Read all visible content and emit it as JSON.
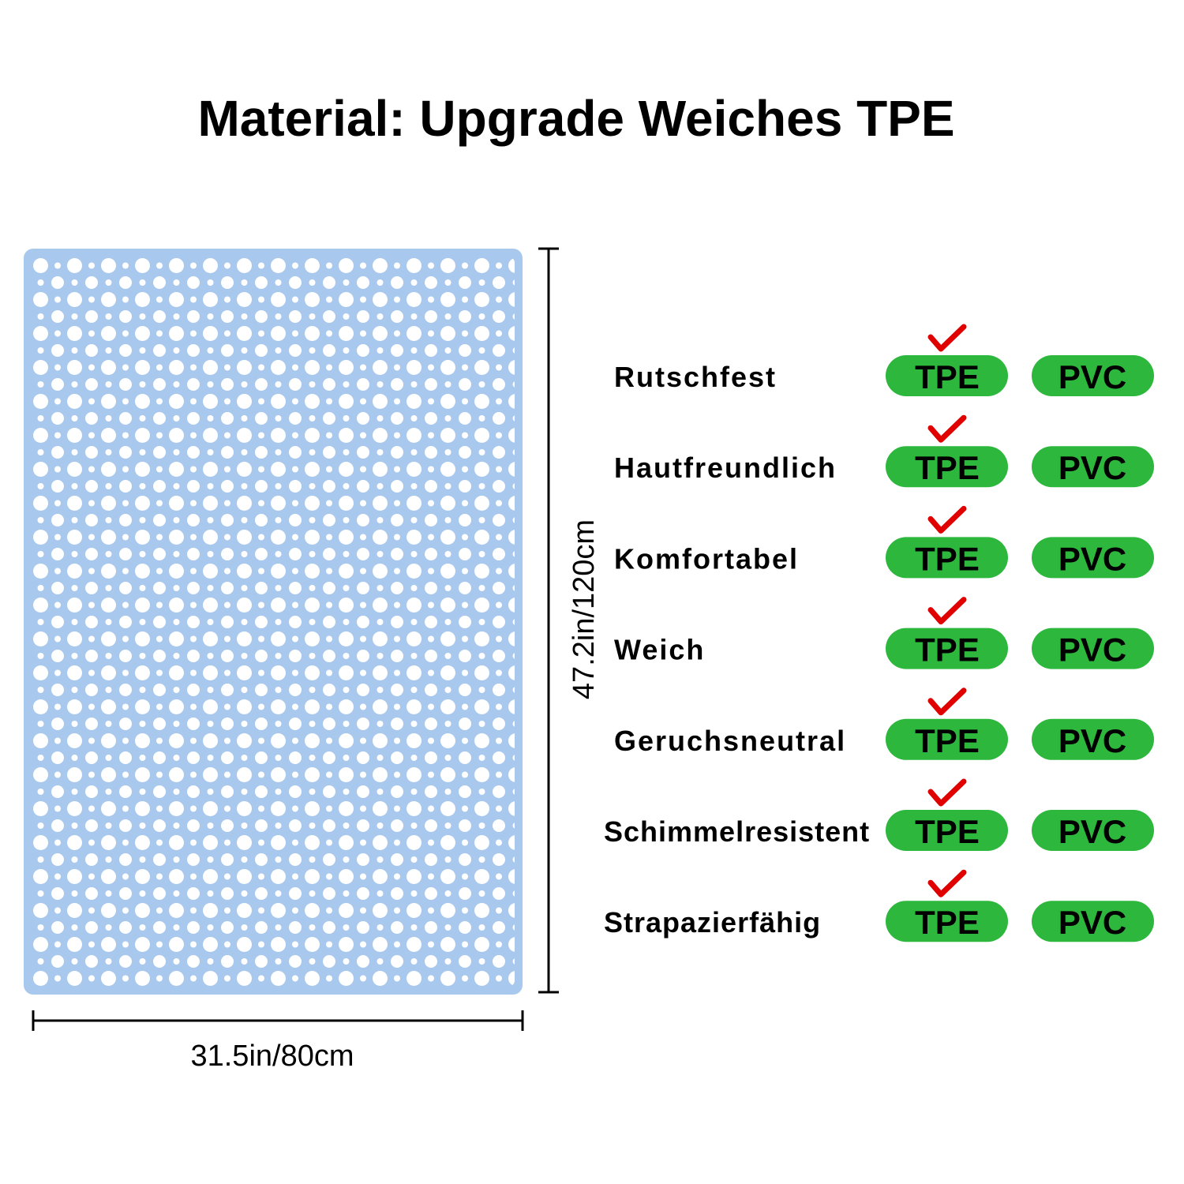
{
  "title": "Material: Upgrade Weiches TPE",
  "dimensions": {
    "width": "31.5in/80cm",
    "height": "47.2in/120cm"
  },
  "comparison": {
    "rows": [
      {
        "feature": "Rutschfest",
        "tpe": "TPE",
        "pvc": "PVC"
      },
      {
        "feature": "Hautfreundlich",
        "tpe": "TPE",
        "pvc": "PVC"
      },
      {
        "feature": "Komfortabel",
        "tpe": "TPE",
        "pvc": "PVC"
      },
      {
        "feature": "Weich",
        "tpe": "TPE",
        "pvc": "PVC"
      },
      {
        "feature": "Geruchsneutral",
        "tpe": "TPE",
        "pvc": "PVC"
      },
      {
        "feature": "Schimmelresistent",
        "tpe": "TPE",
        "pvc": "PVC"
      },
      {
        "feature": "Strapazierfähig",
        "tpe": "TPE",
        "pvc": "PVC"
      }
    ]
  }
}
